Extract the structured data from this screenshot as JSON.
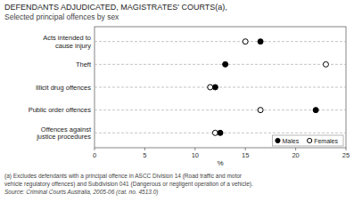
{
  "chart_data": {
    "type": "dot",
    "orientation": "horizontal",
    "title": "DEFENDANTS ADJUDICATED, MAGISTRATES' COURTS(a),",
    "subtitle": "Selected principal offences by sex",
    "categories": [
      "Offences against\njustice procedures",
      "Public order offences",
      "Illicit drug offences",
      "Theft",
      "Acts intended to\ncause injury"
    ],
    "series": [
      {
        "name": "Males",
        "color": "#000000",
        "marker": "circle",
        "values": [
          12.5,
          22.0,
          12.0,
          13.0,
          16.5
        ]
      },
      {
        "name": "Females",
        "color": "#000000",
        "marker": "circle-open",
        "values": [
          12.0,
          16.5,
          11.5,
          23.0,
          15.0
        ]
      }
    ],
    "xlabel": "%",
    "xlim": [
      0,
      25
    ],
    "xticks": [
      0,
      5,
      10,
      15,
      20,
      25
    ],
    "grid": true,
    "legend": "lower right",
    "annotations": [
      "(a) Excludes defendants with a principal offence in ASCC Division 14 (Road traffic and motor",
      "vehicle regulatory offences) and Subdivision 041 (Dangerous or negligent operation of a vehicle).",
      "Source: Criminal Courts Australia, 2005-06 (cat.  no.  4513.0)"
    ]
  }
}
